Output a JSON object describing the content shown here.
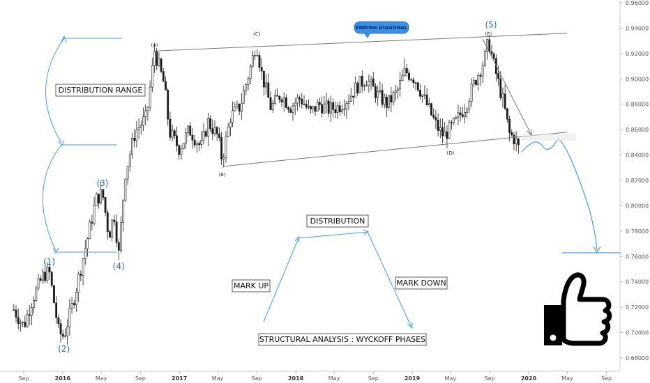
{
  "chart_data": {
    "type": "candlestick",
    "y_axis": {
      "position": "right",
      "range": [
        0.67,
        0.96
      ],
      "ticks": [
        "0.96000",
        "0.94000",
        "0.92000",
        "0.90000",
        "0.88000",
        "0.86000",
        "0.84000",
        "0.82000",
        "0.80000",
        "0.78000",
        "0.76000",
        "0.74000",
        "0.72000",
        "0.70000",
        "0.68000"
      ]
    },
    "x_axis": {
      "ticks": [
        {
          "label": "Sep",
          "year": false
        },
        {
          "label": "2016",
          "year": true
        },
        {
          "label": "May",
          "year": false
        },
        {
          "label": "Sep",
          "year": false
        },
        {
          "label": "2017",
          "year": true
        },
        {
          "label": "May",
          "year": false
        },
        {
          "label": "Sep",
          "year": false
        },
        {
          "label": "2018",
          "year": true
        },
        {
          "label": "May",
          "year": false
        },
        {
          "label": "Sep",
          "year": false
        },
        {
          "label": "2019",
          "year": true
        },
        {
          "label": "May",
          "year": false
        },
        {
          "label": "Sep",
          "year": false
        },
        {
          "label": "2020",
          "year": true
        },
        {
          "label": "May",
          "year": false
        },
        {
          "label": "Sep",
          "year": false
        }
      ]
    },
    "price_path": [
      [
        "2015-08-01",
        0.718
      ],
      [
        "2015-09-01",
        0.705
      ],
      [
        "2015-10-01",
        0.728
      ],
      [
        "2015-11-01",
        0.745
      ],
      [
        "2015-11-20",
        0.748
      ],
      [
        "2015-12-20",
        0.7
      ],
      [
        "2016-01-05",
        0.697
      ],
      [
        "2016-02-01",
        0.722
      ],
      [
        "2016-03-15",
        0.77
      ],
      [
        "2016-04-15",
        0.805
      ],
      [
        "2016-05-05",
        0.81
      ],
      [
        "2016-05-25",
        0.776
      ],
      [
        "2016-06-10",
        0.794
      ],
      [
        "2016-06-25",
        0.762
      ],
      [
        "2016-07-15",
        0.825
      ],
      [
        "2016-08-15",
        0.858
      ],
      [
        "2016-09-20",
        0.87
      ],
      [
        "2016-10-15",
        0.922
      ],
      [
        "2016-11-15",
        0.895
      ],
      [
        "2016-12-01",
        0.858
      ],
      [
        "2017-01-01",
        0.845
      ],
      [
        "2017-02-01",
        0.86
      ],
      [
        "2017-03-10",
        0.846
      ],
      [
        "2017-04-01",
        0.866
      ],
      [
        "2017-05-01",
        0.855
      ],
      [
        "2017-05-15",
        0.836
      ],
      [
        "2017-06-10",
        0.87
      ],
      [
        "2017-07-10",
        0.878
      ],
      [
        "2017-08-15",
        0.912
      ],
      [
        "2017-08-30",
        0.929
      ],
      [
        "2017-09-15",
        0.905
      ],
      [
        "2017-10-15",
        0.877
      ],
      [
        "2017-11-15",
        0.888
      ],
      [
        "2017-12-15",
        0.878
      ],
      [
        "2018-01-15",
        0.885
      ],
      [
        "2018-02-15",
        0.873
      ],
      [
        "2018-03-15",
        0.88
      ],
      [
        "2018-04-15",
        0.876
      ],
      [
        "2018-05-15",
        0.878
      ],
      [
        "2018-06-15",
        0.885
      ],
      [
        "2018-07-15",
        0.895
      ],
      [
        "2018-08-10",
        0.9
      ],
      [
        "2018-09-15",
        0.887
      ],
      [
        "2018-10-15",
        0.88
      ],
      [
        "2018-11-15",
        0.89
      ],
      [
        "2018-12-10",
        0.906
      ],
      [
        "2019-01-10",
        0.9
      ],
      [
        "2019-02-15",
        0.88
      ],
      [
        "2019-03-20",
        0.862
      ],
      [
        "2019-04-10",
        0.855
      ],
      [
        "2019-05-15",
        0.865
      ],
      [
        "2019-06-15",
        0.878
      ],
      [
        "2019-07-20",
        0.9
      ],
      [
        "2019-08-15",
        0.915
      ],
      [
        "2019-08-28",
        0.93
      ],
      [
        "2019-09-15",
        0.91
      ],
      [
        "2019-10-15",
        0.88
      ],
      [
        "2019-11-01",
        0.857
      ],
      [
        "2019-11-20",
        0.852
      ],
      [
        "2019-12-01",
        0.845
      ]
    ],
    "trendlines": {
      "upper": {
        "from": [
          "2016-10-15",
          0.922
        ],
        "to": [
          "2020-05-01",
          0.936
        ]
      },
      "lower": {
        "from": [
          "2017-05-15",
          0.831
        ],
        "to": [
          "2020-05-01",
          0.858
        ]
      }
    },
    "points": [
      {
        "label": "(A)",
        "x": "2016-10-15",
        "y": 0.922
      },
      {
        "label": "(B)",
        "x": "2017-05-15",
        "y": 0.831
      },
      {
        "label": "(C)",
        "x": "2017-09-01",
        "y": 0.931
      },
      {
        "label": "(D)",
        "x": "2019-05-01",
        "y": 0.848
      },
      {
        "label": "(E)",
        "x": "2019-08-28",
        "y": 0.931
      }
    ],
    "waves": [
      {
        "label": "(1)",
        "x": "2015-11-20",
        "y": 0.748
      },
      {
        "label": "(2)",
        "x": "2016-01-05",
        "y": 0.697
      },
      {
        "label": "(3)",
        "x": "2016-05-05",
        "y": 0.81
      },
      {
        "label": "(4)",
        "x": "2016-06-25",
        "y": 0.762
      },
      {
        "label": "(5)",
        "x": "2019-09-05",
        "y": 0.935
      }
    ],
    "annotations": {
      "ending_diagonal": "ENDING DIAGONAL",
      "distribution_range": "DISTRIBUTION RANGE",
      "distribution": "DISTRIBUTION",
      "mark_up": "MARK UP",
      "mark_down": "MARK DOWN",
      "structural_analysis": "STRUCTURAL ANALYSIS : WYCKOFF PHASES"
    },
    "projection_target": 0.762,
    "colors": {
      "candles": "#1a1a1a",
      "annotation": "#4a9be0",
      "trendline": "#777777",
      "pill": "#3b8fe6"
    }
  }
}
